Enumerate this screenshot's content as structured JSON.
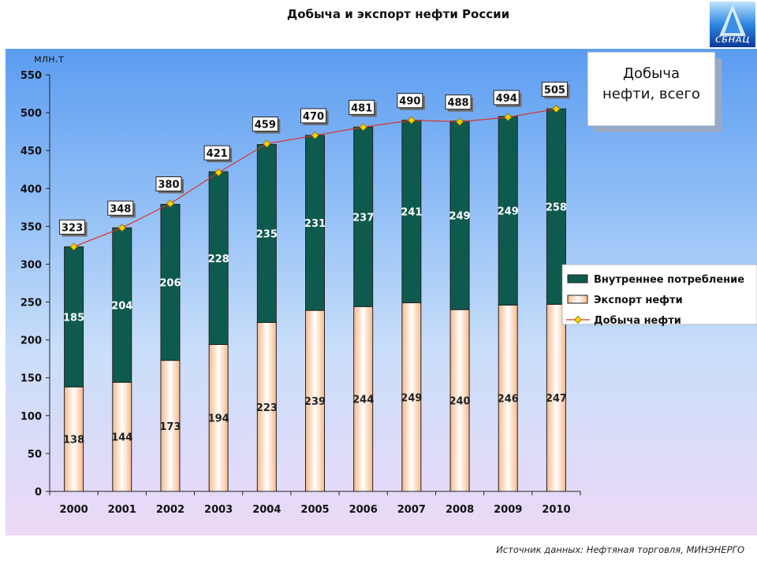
{
  "header": {
    "title": "Добыча и экспорт  нефти России",
    "logo_text": "СБНАЦ",
    "logo_icon": "oil-derrick-logo"
  },
  "source_note": "Источник данных:  Нефтяная торговля, МИНЭНЕРГО",
  "colors": {
    "domestic": "#0f5a4e",
    "export_top": "#ffffff",
    "export_bottom": "#f7b98a",
    "line": "#d8342a",
    "marker": "#f5d300"
  },
  "chart_data": {
    "type": "bar",
    "stacked": true,
    "ylabel": "млн.т",
    "ylim": [
      0,
      550
    ],
    "ytick_step": 50,
    "categories": [
      "2000",
      "2001",
      "2002",
      "2003",
      "2004",
      "2005",
      "2006",
      "2007",
      "2008",
      "2009",
      "2010"
    ],
    "series": [
      {
        "name": "Внутреннее потребление",
        "kind": "bar",
        "values": [
          185,
          204,
          206,
          228,
          235,
          231,
          237,
          241,
          249,
          249,
          258
        ]
      },
      {
        "name": "Экспорт нефти",
        "kind": "bar",
        "values": [
          138,
          144,
          173,
          194,
          223,
          239,
          244,
          249,
          240,
          246,
          247
        ]
      },
      {
        "name": "Добыча нефти",
        "kind": "line",
        "values": [
          323,
          348,
          380,
          421,
          459,
          470,
          481,
          490,
          488,
          494,
          505
        ]
      }
    ],
    "annotation": "Добыча нефти, всего",
    "legend_position": "right",
    "grid": false
  }
}
